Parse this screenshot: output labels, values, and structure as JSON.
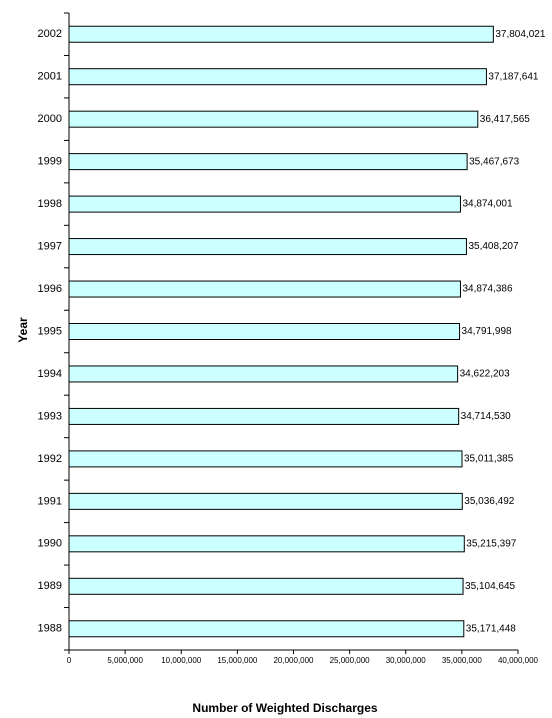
{
  "chart_data": {
    "type": "bar",
    "orientation": "horizontal",
    "x_label": "Number of Weighted Discharges",
    "y_label": "Year",
    "categories": [
      "1988",
      "1989",
      "1990",
      "1991",
      "1992",
      "1993",
      "1994",
      "1995",
      "1996",
      "1997",
      "1998",
      "1999",
      "2000",
      "2001",
      "2002"
    ],
    "values": [
      35171448,
      35104645,
      35215397,
      35036492,
      35011385,
      34714530,
      34622203,
      34791998,
      34874386,
      35408207,
      34874001,
      35467673,
      36417565,
      37187641,
      37804021
    ],
    "value_labels": [
      "35,171,448",
      "35,104,645",
      "35,215,397",
      "35,036,492",
      "35,011,385",
      "34,714,530",
      "34,622,203",
      "34,791,998",
      "34,874,386",
      "35,408,207",
      "34,874,001",
      "35,467,673",
      "36,417,565",
      "37,187,641",
      "37,804,021"
    ],
    "color": "#ccffff",
    "xlim": [
      0,
      40000000
    ],
    "xticks": [
      0,
      {
        "value": 5000000,
        "label": "5,000,000"
      },
      {
        "value": 10000000,
        "label": "10,000,000"
      },
      {
        "value": 15000000,
        "label": "15,000,000"
      },
      {
        "value": 20000000,
        "label": "20,000,000"
      },
      {
        "value": 25000000,
        "label": "25,000,000"
      },
      {
        "value": 30000000,
        "label": "30,000,000"
      },
      {
        "value": 35000000,
        "label": "35,000,000"
      },
      {
        "value": 40000000,
        "label": "40,000,000"
      }
    ],
    "grid": false
  }
}
